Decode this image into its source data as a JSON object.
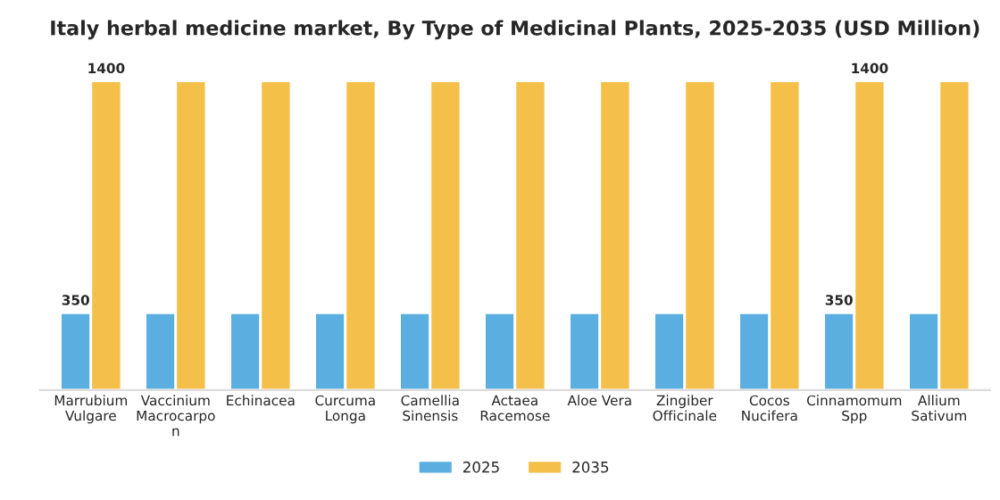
{
  "chart_data": {
    "type": "bar",
    "title": "Italy herbal medicine market, By Type of Medicinal Plants, 2025-2035 (USD Million)",
    "categories": [
      "Marrubium\nVulgare",
      "Vaccinium\nMacrocarpo\nn",
      "Echinacea",
      "Curcuma\nLonga",
      "Camellia\nSinensis",
      "Actaea\nRacemose",
      "Aloe Vera",
      "Zingiber\nOfficinale",
      "Cocos\nNucifera",
      "Cinnamomum\nSpp",
      "Allium\nSativum"
    ],
    "series": [
      {
        "name": "2025",
        "color": "#5aafe0",
        "values": [
          350,
          350,
          350,
          350,
          350,
          350,
          350,
          350,
          350,
          350,
          350
        ],
        "value_labels": [
          "350",
          null,
          null,
          null,
          null,
          null,
          null,
          null,
          null,
          "350",
          null
        ]
      },
      {
        "name": "2035",
        "color": "#f5c04a",
        "values": [
          1400,
          1400,
          1400,
          1400,
          1400,
          1400,
          1400,
          1400,
          1400,
          1400,
          1400
        ],
        "value_labels": [
          "1400",
          null,
          null,
          null,
          null,
          null,
          null,
          null,
          null,
          "1400",
          null
        ]
      }
    ],
    "legend": "bottom",
    "grid": false
  }
}
